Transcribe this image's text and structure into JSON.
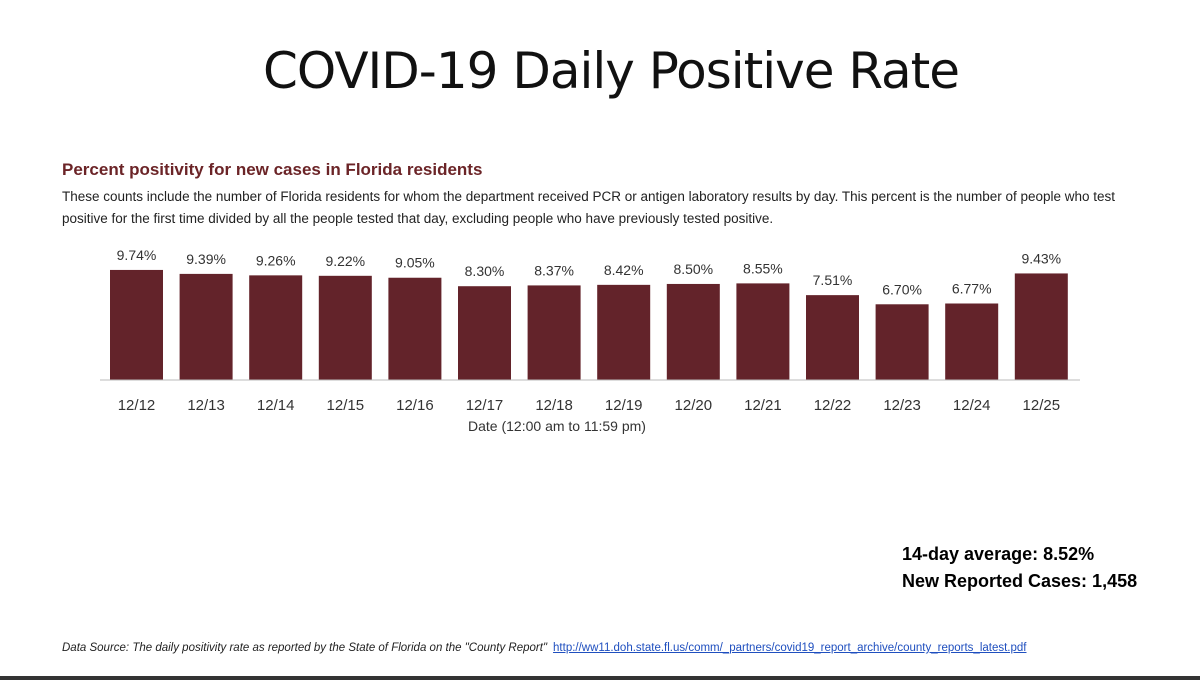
{
  "slide": {
    "title": "COVID-19 Daily Positive Rate"
  },
  "chart_data": {
    "type": "bar",
    "title": "Percent positivity for new cases in Florida residents",
    "subtitle": "These counts include the number of Florida residents for whom the department received PCR or antigen laboratory results by day. This percent is the number of people who test positive for the first time divided by all the people tested that day, excluding people who have previously tested positive.",
    "categories": [
      "12/12",
      "12/13",
      "12/14",
      "12/15",
      "12/16",
      "12/17",
      "12/18",
      "12/19",
      "12/20",
      "12/21",
      "12/22",
      "12/23",
      "12/24",
      "12/25"
    ],
    "values": [
      9.74,
      9.39,
      9.26,
      9.22,
      9.05,
      8.3,
      8.37,
      8.42,
      8.5,
      8.55,
      7.51,
      6.7,
      6.77,
      9.43
    ],
    "data_labels": [
      "9.74%",
      "9.39%",
      "9.26%",
      "9.22%",
      "9.05%",
      "8.30%",
      "8.37%",
      "8.42%",
      "8.50%",
      "8.55%",
      "7.51%",
      "6.70%",
      "6.77%",
      "9.43%"
    ],
    "xlabel": "Date (12:00 am to 11:59 pm)",
    "ylabel": "",
    "ylim": [
      0,
      10
    ],
    "grid": false,
    "bar_color": "#63232a"
  },
  "stats": {
    "average": "14-day average:  8.52%",
    "new_cases": "New Reported Cases: 1,458"
  },
  "footer": {
    "source_text": "Data Source: The daily positivity rate as reported by the State of Florida on the \"County Report\"",
    "link_text": "http://ww11.doh.state.fl.us/comm/_partners/covid19_report_archive/county_reports_latest.pdf"
  }
}
